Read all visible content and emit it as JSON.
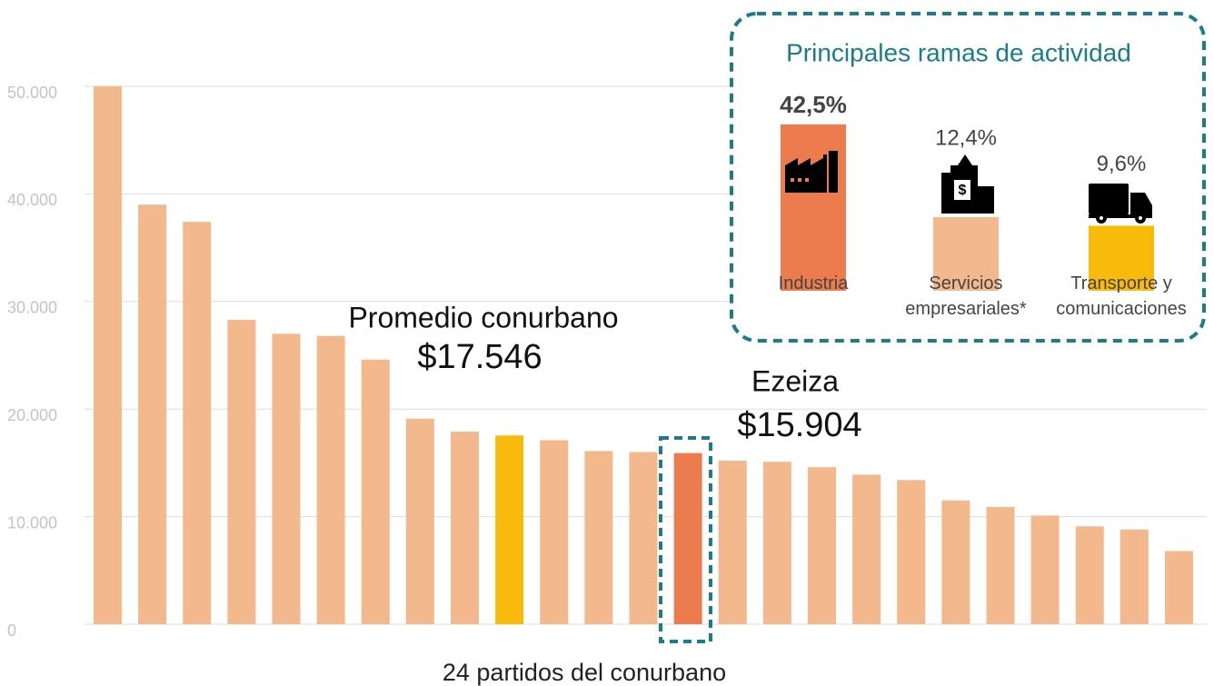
{
  "chart_data": [
    {
      "type": "bar",
      "categories": [
        null,
        null,
        null,
        null,
        null,
        null,
        null,
        null,
        null,
        null,
        null,
        null,
        null,
        null,
        null,
        null,
        null,
        null,
        null,
        null,
        null,
        null,
        null,
        null,
        null
      ],
      "values": [
        50000,
        39000,
        37400,
        28300,
        27000,
        26800,
        24600,
        19100,
        17900,
        17546,
        17100,
        16100,
        16000,
        15904,
        15200,
        15100,
        14600,
        13900,
        13400,
        11500,
        10900,
        10100,
        9100,
        8800,
        6800
      ],
      "value_labels": [
        null,
        null,
        null,
        null,
        null,
        null,
        null,
        null,
        null,
        "$17.546",
        null,
        null,
        null,
        "$15.904",
        null,
        null,
        null,
        null,
        null,
        null,
        null,
        null,
        null,
        null,
        null
      ],
      "colors": [
        "#f3b88b",
        "#f3b88b",
        "#f3b88b",
        "#f3b88b",
        "#f3b88b",
        "#f3b88b",
        "#f3b88b",
        "#f3b88b",
        "#f3b88b",
        "#f9bb0b",
        "#f3b88b",
        "#f3b88b",
        "#f3b88b",
        "#ec7b4d",
        "#f3b88b",
        "#f3b88b",
        "#f3b88b",
        "#f3b88b",
        "#f3b88b",
        "#f3b88b",
        "#f3b88b",
        "#f3b88b",
        "#f3b88b",
        "#f3b88b",
        "#f3b88b"
      ],
      "annotations": [
        "Promedio conurbano",
        "Ezeiza"
      ],
      "xlabel": "24 partidos del conurbano",
      "ylim": [
        0,
        50000
      ],
      "yticks": [
        0,
        {
          "value": 10000,
          "label": "10.000"
        },
        {
          "value": 20000,
          "label": "20.000"
        },
        {
          "value": 30000,
          "label": "30.000"
        },
        {
          "value": 40000,
          "label": "40.000"
        },
        {
          "value": 50000,
          "label": "50.000"
        }
      ],
      "grid": true
    },
    {
      "type": "bar",
      "title": "Principales ramas de actividad",
      "categories": [
        "Industria",
        "Servicios empresariales*",
        "Transporte y comunicaciones"
      ],
      "values": [
        42.5,
        12.4,
        9.6
      ],
      "value_labels": [
        "42,5%",
        "12,4%",
        "9,6%"
      ],
      "colors": [
        "#ec7b4d",
        "#f3b88b",
        "#f9bb0b"
      ]
    }
  ]
}
